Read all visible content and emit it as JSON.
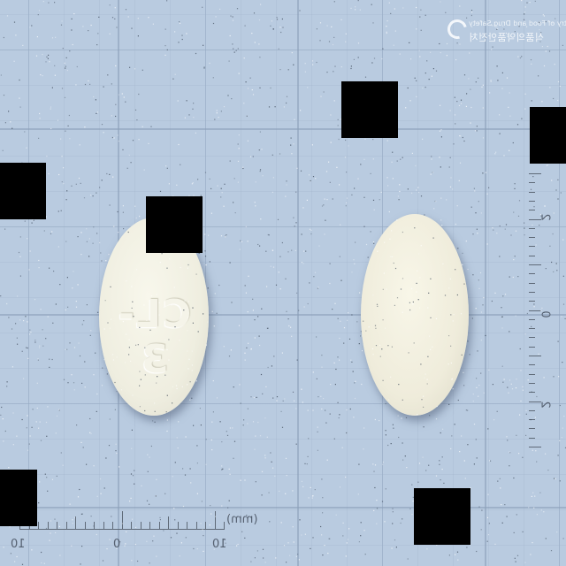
{
  "scene": {
    "background_color": "#b9cbe0",
    "mask_color": "#000000"
  },
  "watermark": {
    "line1": "Ministry of Food and Drug Safety",
    "line2": "식품의약품안전처",
    "icon": "mfds-logo-icon"
  },
  "pills": [
    {
      "name": "left-tablet",
      "color": "#efeee0",
      "shape": "oval",
      "imprint": "CL-3"
    },
    {
      "name": "right-tablet",
      "color": "#efecdb",
      "shape": "oval",
      "imprint": ""
    }
  ],
  "ruler_bottom": {
    "labels": [
      "10",
      "0",
      "10"
    ],
    "unit": "(mm)"
  },
  "ruler_right": {
    "labels": [
      "2",
      "0",
      "2"
    ]
  }
}
